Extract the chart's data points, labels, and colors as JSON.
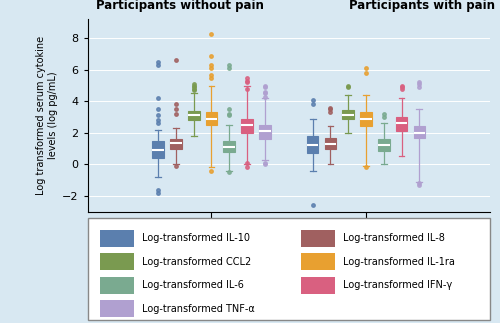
{
  "cytokines": [
    "IL-10",
    "IL-8",
    "CCL2",
    "IL-1ra",
    "IL-6",
    "IFN-y",
    "TNF-a"
  ],
  "colors": {
    "IL-10": "#5b7fae",
    "IL-8": "#a06060",
    "CCL2": "#7a9a50",
    "IL-1ra": "#e8a030",
    "IL-6": "#7aaa90",
    "IFN-y": "#d96080",
    "TNF-a": "#b0a0d0"
  },
  "legend_labels": {
    "IL-10": "Log-transformed IL-10",
    "IL-8": "Log-transformed IL-8",
    "CCL2": "Log-transformed CCL2",
    "IL-1ra": "Log-transformed IL-1ra",
    "IL-6": "Log-transformed IL-6",
    "IFN-y": "Log-transformed IFN-γ",
    "TNF-a": "Log-transformed TNF-α"
  },
  "group0": {
    "IL-10": {
      "q1": 0.4,
      "med": 0.9,
      "q3": 1.5,
      "whislo": -0.8,
      "whishi": 2.2,
      "fliers": [
        3.1,
        2.8,
        3.5,
        2.6,
        6.3,
        4.2,
        6.5,
        -1.8,
        -1.6
      ]
    },
    "IL-8": {
      "q1": 1.0,
      "med": 1.35,
      "q3": 1.6,
      "whislo": 0.05,
      "whishi": 2.3,
      "fliers": [
        3.8,
        3.5,
        3.2,
        6.6,
        -0.1
      ]
    },
    "CCL2": {
      "q1": 2.8,
      "med": 3.1,
      "q3": 3.4,
      "whislo": 1.8,
      "whishi": 4.5,
      "fliers": [
        5.0,
        4.8,
        5.1,
        4.9,
        4.7
      ]
    },
    "IL-1ra": {
      "q1": 2.5,
      "med": 2.9,
      "q3": 3.3,
      "whislo": -0.2,
      "whishi": 5.0,
      "fliers": [
        5.5,
        5.7,
        6.9,
        8.3,
        6.1,
        6.3,
        -0.4
      ]
    },
    "IL-6": {
      "q1": 0.8,
      "med": 1.1,
      "q3": 1.5,
      "whislo": -0.4,
      "whishi": 2.5,
      "fliers": [
        3.2,
        3.5,
        6.1,
        6.3,
        3.1,
        -0.5
      ]
    },
    "IFN-y": {
      "q1": 2.0,
      "med": 2.5,
      "q3": 2.9,
      "whislo": 0.0,
      "whishi": 5.0,
      "fliers": [
        5.2,
        5.3,
        5.5,
        4.8,
        0.1,
        -0.2
      ]
    },
    "TNF-a": {
      "q1": 1.6,
      "med": 2.1,
      "q3": 2.5,
      "whislo": 0.3,
      "whishi": 4.2,
      "fliers": [
        5.0,
        4.9,
        4.5,
        4.6,
        4.3,
        0.1,
        0.0
      ]
    }
  },
  "group1": {
    "IL-10": {
      "q1": 0.7,
      "med": 1.2,
      "q3": 1.8,
      "whislo": -0.4,
      "whishi": 2.9,
      "fliers": [
        3.8,
        4.1,
        -2.6
      ]
    },
    "IL-8": {
      "q1": 0.95,
      "med": 1.3,
      "q3": 1.65,
      "whislo": 0.0,
      "whishi": 2.4,
      "fliers": [
        3.5,
        3.3,
        3.6
      ]
    },
    "CCL2": {
      "q1": 2.85,
      "med": 3.15,
      "q3": 3.45,
      "whislo": 2.0,
      "whishi": 4.4,
      "fliers": [
        5.0,
        4.9
      ]
    },
    "IL-1ra": {
      "q1": 2.4,
      "med": 2.85,
      "q3": 3.3,
      "whislo": -0.1,
      "whishi": 4.4,
      "fliers": [
        6.1,
        5.8,
        -0.2
      ]
    },
    "IL-6": {
      "q1": 0.85,
      "med": 1.2,
      "q3": 1.6,
      "whislo": 0.0,
      "whishi": 2.6,
      "fliers": [
        3.0,
        3.2
      ]
    },
    "IFN-y": {
      "q1": 2.1,
      "med": 2.6,
      "q3": 3.0,
      "whislo": 0.5,
      "whishi": 4.2,
      "fliers": [
        4.9,
        5.0,
        4.8
      ]
    },
    "TNF-a": {
      "q1": 1.7,
      "med": 2.0,
      "q3": 2.4,
      "whislo": -1.1,
      "whishi": 3.5,
      "fliers": [
        5.2,
        5.1,
        4.9,
        -1.2,
        -1.3
      ]
    }
  },
  "ylim": [
    -3,
    9.2
  ],
  "yticks": [
    -2,
    0,
    2,
    4,
    6,
    8
  ],
  "ylabel": "Log transformed serum cytokine\nlevels (log pg/mL)",
  "bg_color": "#d8e8f2",
  "plot_bg": "#d8e8f2",
  "title_nopain": "Participants without pain",
  "title_pain": "Participants with pain",
  "box_width": 0.075,
  "left_items": [
    "IL-10",
    "CCL2",
    "IL-6",
    "TNF-a"
  ],
  "right_items": [
    "IL-8",
    "IL-1ra",
    "IFN-y"
  ]
}
